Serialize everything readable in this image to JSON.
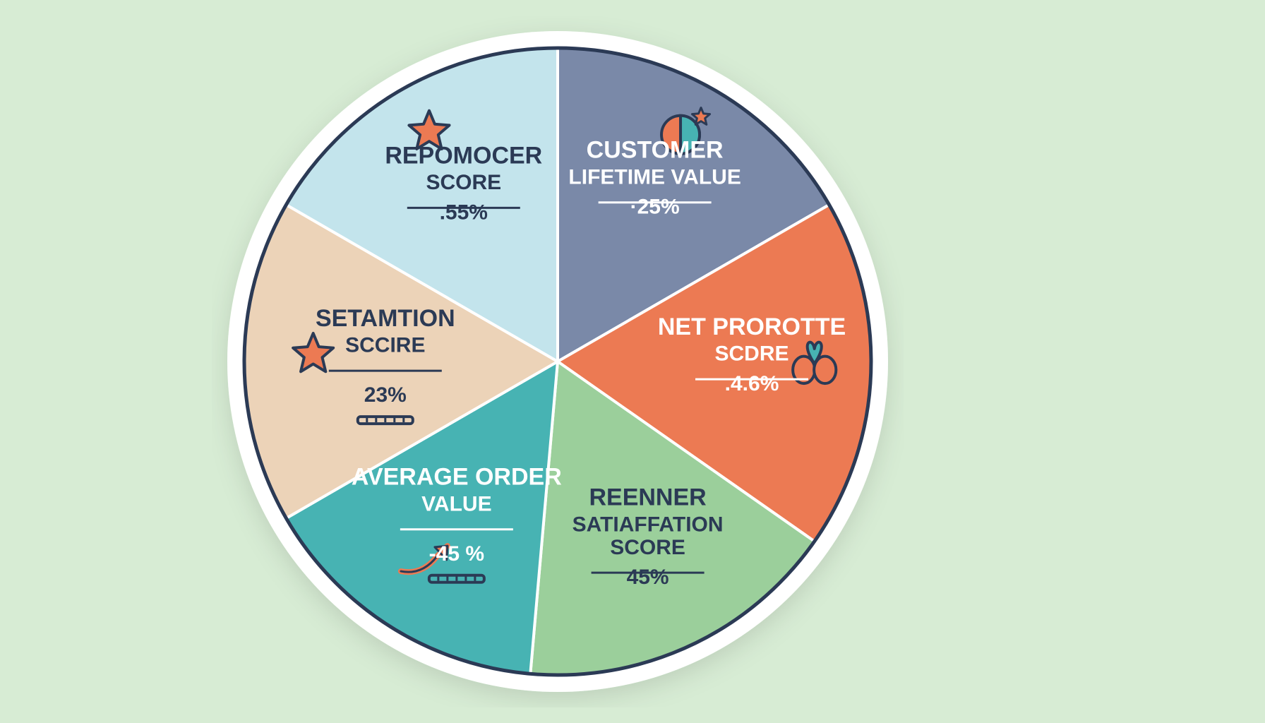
{
  "background_color": "#d7ecd4",
  "chart": {
    "type": "pie",
    "diameter": 900,
    "ring_outer_color": "#ffffff",
    "ring_outer_width": 22,
    "outline_color": "#2b3a55",
    "outline_width": 5,
    "divider_color": "#ffffff",
    "divider_width": 4,
    "label_color_light": "#ffffff",
    "label_color_dark": "#2b3a55",
    "value_color_light": "#ffffff",
    "value_color_dark": "#2b3a55",
    "title_fontsize": 34,
    "subtitle_fontsize": 30,
    "value_fontsize": 30,
    "icon_size": 60,
    "slices": [
      {
        "id": "clv",
        "title": "CUSTOMER",
        "subtitle": "LIFETIME VALUE",
        "value": "·25%",
        "fill": "#7a89a8",
        "text_mode": "light",
        "start_deg": -90,
        "end_deg": -30,
        "icon": "pie-star",
        "label_r": 0.62,
        "icon_r": 0.82
      },
      {
        "id": "nps",
        "title": "NET PROROTTE",
        "subtitle": "SCDRE",
        "value": ".4.6%",
        "fill": "#ec7a53",
        "text_mode": "light",
        "start_deg": -30,
        "end_deg": 35,
        "icon": "balloons",
        "label_r": 0.62,
        "icon_r": 0.82
      },
      {
        "id": "sat",
        "title": "REENNER",
        "subtitle": "SATIAFFATION",
        "subtitle2": "SCORE",
        "value": "45%",
        "fill": "#9bcf9b",
        "text_mode": "dark",
        "start_deg": 35,
        "end_deg": 95,
        "icon": "",
        "label_r": 0.68,
        "icon_r": 0.9
      },
      {
        "id": "aov",
        "title": "AVERAGE ORDER",
        "subtitle": "VALUE",
        "value": "-45 %",
        "fill": "#47b3b3",
        "text_mode": "light",
        "start_deg": 95,
        "end_deg": 150,
        "icon": "arrow-up",
        "label_r": 0.6,
        "icon_r": 0.78
      },
      {
        "id": "set",
        "title": "SETAMTION",
        "subtitle": "SCCIRE",
        "value": "23%",
        "fill": "#ecd3b8",
        "text_mode": "dark",
        "start_deg": 150,
        "end_deg": 210,
        "icon": "star",
        "label_r": 0.55,
        "icon_r": 0.78
      },
      {
        "id": "repo",
        "title": "REPOMOCER",
        "subtitle": "SCORE",
        "value": ".55%",
        "fill": "#c3e4ec",
        "text_mode": "dark",
        "start_deg": 210,
        "end_deg": 270,
        "icon": "star",
        "label_r": 0.6,
        "icon_r": 0.82
      }
    ]
  }
}
